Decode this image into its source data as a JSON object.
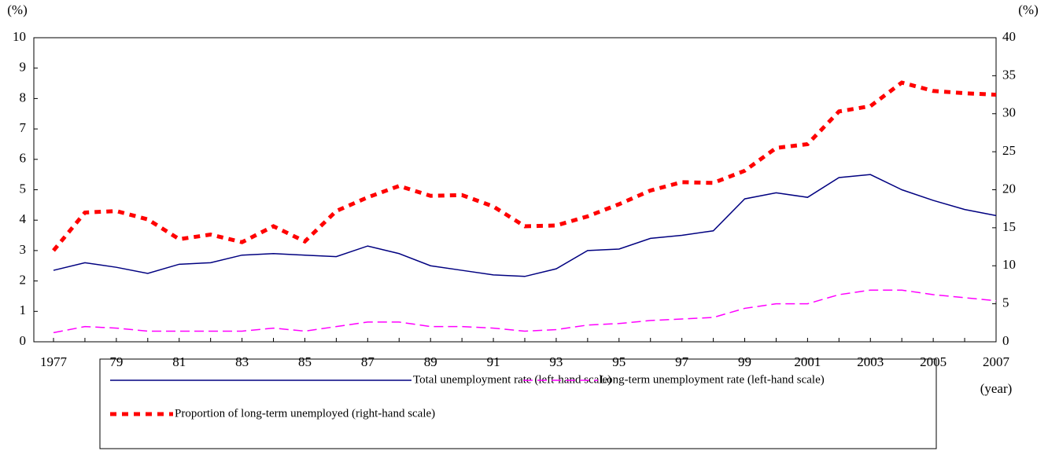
{
  "chart_data": {
    "type": "line",
    "y_unit_label": "(%)",
    "y2_unit_label": "(%)",
    "x_unit_label": "(year)",
    "categories": [
      "1977",
      null,
      "79",
      null,
      "81",
      null,
      "83",
      null,
      "85",
      null,
      "87",
      null,
      "89",
      null,
      "91",
      null,
      "93",
      null,
      "95",
      null,
      "97",
      null,
      "99",
      null,
      "2001",
      null,
      "2003",
      null,
      "2005",
      null,
      "2007"
    ],
    "ylim": [
      0,
      10
    ],
    "yticks": [
      0,
      1,
      2,
      3,
      4,
      5,
      6,
      7,
      8,
      9,
      10
    ],
    "y2lim": [
      0,
      40
    ],
    "y2ticks": [
      0,
      5,
      10,
      15,
      20,
      25,
      30,
      35,
      40
    ],
    "series": [
      {
        "name": "Total unemployment rate (left-hand scale)",
        "color": "#000080",
        "dash": "solid",
        "values": [
          2.35,
          2.6,
          2.45,
          2.25,
          2.55,
          2.6,
          2.85,
          2.9,
          2.85,
          2.8,
          3.15,
          2.9,
          2.5,
          2.35,
          2.2,
          2.15,
          2.4,
          3.0,
          3.05,
          3.4,
          3.5,
          3.65,
          4.7,
          4.9,
          4.75,
          5.4,
          5.5,
          5.0,
          4.65,
          4.35,
          4.15
        ]
      },
      {
        "name": "Long-term unemployment rate (left-hand scale)",
        "color": "#ff00ff",
        "dash": "dashed",
        "values": [
          0.3,
          0.5,
          0.45,
          0.35,
          0.35,
          0.35,
          0.35,
          0.45,
          0.35,
          0.5,
          0.65,
          0.65,
          0.5,
          0.5,
          0.45,
          0.35,
          0.4,
          0.55,
          0.6,
          0.7,
          0.75,
          0.8,
          1.1,
          1.25,
          1.25,
          1.55,
          1.7,
          1.7,
          1.55,
          1.45,
          1.35
        ]
      },
      {
        "name": "Proportion of long-term unemployed (right-hand scale)",
        "color": "#ff0000",
        "dash": "dotted",
        "axis": "y2",
        "values": [
          12,
          17,
          17.2,
          16.1,
          13.5,
          14.1,
          13.1,
          15.2,
          13.2,
          17.2,
          19,
          20.5,
          19.2,
          19.3,
          17.8,
          15.2,
          15.3,
          16.5,
          18.1,
          19.9,
          21,
          20.9,
          22.5,
          25.5,
          26,
          30.3,
          31,
          34.1,
          33,
          32.7,
          32.5
        ]
      }
    ]
  }
}
